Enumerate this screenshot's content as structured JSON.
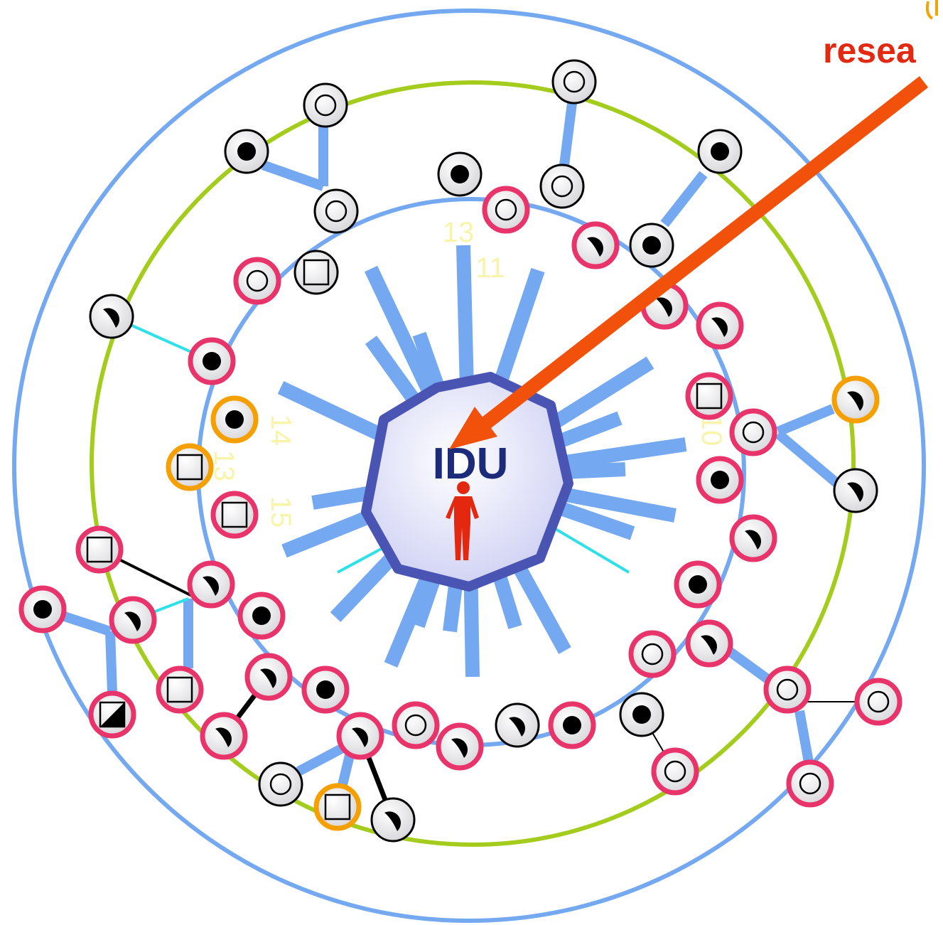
{
  "callout": "resea",
  "center_label": "IDU",
  "spoke_labels": [
    "13",
    "11",
    "14",
    "13",
    "15",
    "10"
  ]
}
